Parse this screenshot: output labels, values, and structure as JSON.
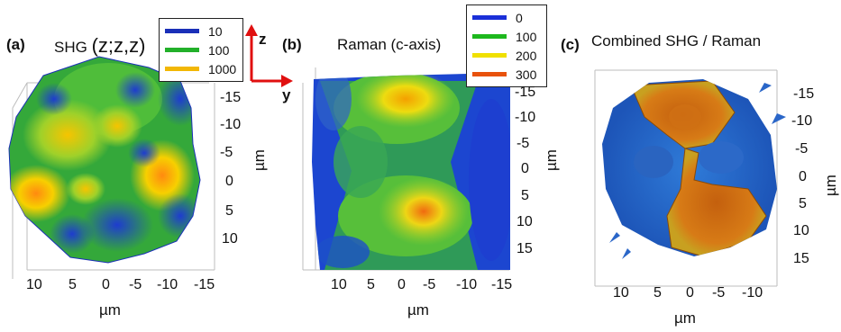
{
  "figure": {
    "panels": [
      {
        "letter": "(a)",
        "title": "SHG",
        "title_suffix": "(z;z,z)",
        "legend": [
          {
            "label": "10",
            "color": "#1a2fb8"
          },
          {
            "label": "100",
            "color": "#22b02a"
          },
          {
            "label": "1000",
            "color": "#f2b705"
          }
        ],
        "x_ticks": [
          "10",
          "5",
          "0",
          "-5",
          "-10",
          "-15"
        ],
        "y_ticks": [
          "-15",
          "-10",
          "-5",
          "0",
          "5",
          "10"
        ],
        "x_unit": "µm",
        "y_unit": "µm"
      },
      {
        "letter": "(b)",
        "title": "Raman (c-axis)",
        "legend": [
          {
            "label": "0",
            "color": "#1a2fd8"
          },
          {
            "label": "100",
            "color": "#1db81d"
          },
          {
            "label": "200",
            "color": "#f0e000"
          },
          {
            "label": "300",
            "color": "#e8520c"
          }
        ],
        "x_ticks": [
          "10",
          "5",
          "0",
          "-5",
          "-10",
          "-15"
        ],
        "y_ticks": [
          "-15",
          "-10",
          "-5",
          "0",
          "5",
          "10",
          "15"
        ],
        "x_unit": "µm",
        "y_unit": "µm"
      },
      {
        "letter": "(c)",
        "title": "Combined SHG / Raman",
        "x_ticks": [
          "10",
          "5",
          "0",
          "-5",
          "-10"
        ],
        "y_ticks": [
          "-15",
          "-10",
          "-5",
          "0",
          "5",
          "10",
          "15"
        ],
        "x_unit": "µm",
        "y_unit": "µm"
      }
    ],
    "axes_indicator": {
      "z_label": "z",
      "y_label": "y",
      "color": "#e01010"
    }
  }
}
